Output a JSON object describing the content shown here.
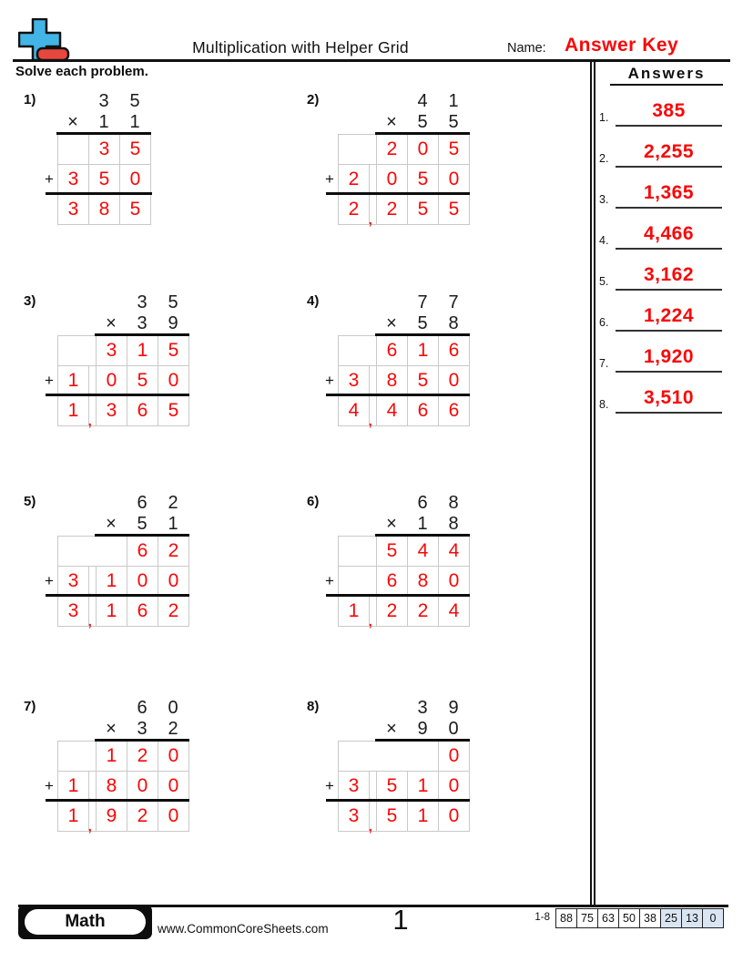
{
  "colors": {
    "accent_red": "#f80808",
    "grid_border": "#c9c9c9",
    "score_highlight": "#d9e5f3",
    "logo_blue": "#42b4e6",
    "logo_red": "#e8473d",
    "ink": "#111111"
  },
  "header": {
    "logo_icon": "plus-minus-logo-icon",
    "title": "Multiplication with Helper Grid",
    "name_label": "Name:",
    "name_value": "Answer Key",
    "instruction": "Solve each problem."
  },
  "answers_panel": {
    "title": "Answers",
    "items": [
      {
        "num": "1.",
        "value": "385"
      },
      {
        "num": "2.",
        "value": "2,255"
      },
      {
        "num": "3.",
        "value": "1,365"
      },
      {
        "num": "4.",
        "value": "4,466"
      },
      {
        "num": "5.",
        "value": "3,162"
      },
      {
        "num": "6.",
        "value": "1,224"
      },
      {
        "num": "7.",
        "value": "1,920"
      },
      {
        "num": "8.",
        "value": "3,510"
      }
    ]
  },
  "problems": [
    {
      "label": "1)",
      "top_digits": [
        "3",
        "5"
      ],
      "mult_digits": [
        "1",
        "1"
      ],
      "cols": 3,
      "rows": [
        {
          "cells": [
            {
              "v": ""
            },
            {
              "v": "3"
            },
            {
              "v": "5"
            }
          ]
        },
        {
          "plus": true,
          "cells": [
            {
              "v": "3"
            },
            {
              "v": "5"
            },
            {
              "v": "0"
            }
          ]
        },
        {
          "answer": true,
          "cells": [
            {
              "v": "3"
            },
            {
              "v": "8"
            },
            {
              "v": "5"
            }
          ]
        }
      ]
    },
    {
      "label": "2)",
      "top_digits": [
        "4",
        "1"
      ],
      "mult_digits": [
        "5",
        "5"
      ],
      "cols": 5,
      "rows": [
        {
          "cells": [
            {
              "v": "",
              "s": 2
            },
            {
              "v": "2"
            },
            {
              "v": "0"
            },
            {
              "v": "5"
            }
          ]
        },
        {
          "plus": true,
          "cells": [
            {
              "v": "2"
            },
            {
              "v": ",",
              "c": true
            },
            {
              "v": "0"
            },
            {
              "v": "5"
            },
            {
              "v": "0"
            }
          ]
        },
        {
          "answer": true,
          "cells": [
            {
              "v": "2"
            },
            {
              "v": ",",
              "c": true
            },
            {
              "v": "2"
            },
            {
              "v": "5"
            },
            {
              "v": "5"
            }
          ]
        }
      ]
    },
    {
      "label": "3)",
      "top_digits": [
        "3",
        "5"
      ],
      "mult_digits": [
        "3",
        "9"
      ],
      "cols": 5,
      "rows": [
        {
          "cells": [
            {
              "v": "",
              "s": 2
            },
            {
              "v": "3"
            },
            {
              "v": "1"
            },
            {
              "v": "5"
            }
          ]
        },
        {
          "plus": true,
          "cells": [
            {
              "v": "1"
            },
            {
              "v": ",",
              "c": true
            },
            {
              "v": "0"
            },
            {
              "v": "5"
            },
            {
              "v": "0"
            }
          ]
        },
        {
          "answer": true,
          "cells": [
            {
              "v": "1"
            },
            {
              "v": ",",
              "c": true
            },
            {
              "v": "3"
            },
            {
              "v": "6"
            },
            {
              "v": "5"
            }
          ]
        }
      ]
    },
    {
      "label": "4)",
      "top_digits": [
        "7",
        "7"
      ],
      "mult_digits": [
        "5",
        "8"
      ],
      "cols": 5,
      "rows": [
        {
          "cells": [
            {
              "v": "",
              "s": 2
            },
            {
              "v": "6"
            },
            {
              "v": "1"
            },
            {
              "v": "6"
            }
          ]
        },
        {
          "plus": true,
          "cells": [
            {
              "v": "3"
            },
            {
              "v": ",",
              "c": true
            },
            {
              "v": "8"
            },
            {
              "v": "5"
            },
            {
              "v": "0"
            }
          ]
        },
        {
          "answer": true,
          "cells": [
            {
              "v": "4"
            },
            {
              "v": ",",
              "c": true
            },
            {
              "v": "4"
            },
            {
              "v": "6"
            },
            {
              "v": "6"
            }
          ]
        }
      ]
    },
    {
      "label": "5)",
      "top_digits": [
        "6",
        "2"
      ],
      "mult_digits": [
        "5",
        "1"
      ],
      "cols": 5,
      "rows": [
        {
          "cells": [
            {
              "v": "",
              "s": 3
            },
            {
              "v": "6"
            },
            {
              "v": "2"
            }
          ]
        },
        {
          "plus": true,
          "cells": [
            {
              "v": "3"
            },
            {
              "v": ",",
              "c": true
            },
            {
              "v": "1"
            },
            {
              "v": "0"
            },
            {
              "v": "0"
            }
          ]
        },
        {
          "answer": true,
          "cells": [
            {
              "v": "3"
            },
            {
              "v": ",",
              "c": true
            },
            {
              "v": "1"
            },
            {
              "v": "6"
            },
            {
              "v": "2"
            }
          ]
        }
      ]
    },
    {
      "label": "6)",
      "top_digits": [
        "6",
        "8"
      ],
      "mult_digits": [
        "1",
        "8"
      ],
      "cols": 5,
      "rows": [
        {
          "cells": [
            {
              "v": "",
              "s": 2
            },
            {
              "v": "5"
            },
            {
              "v": "4"
            },
            {
              "v": "4"
            }
          ]
        },
        {
          "plus": true,
          "cells": [
            {
              "v": "",
              "s": 2
            },
            {
              "v": "6"
            },
            {
              "v": "8"
            },
            {
              "v": "0"
            }
          ]
        },
        {
          "answer": true,
          "cells": [
            {
              "v": "1"
            },
            {
              "v": ",",
              "c": true
            },
            {
              "v": "2"
            },
            {
              "v": "2"
            },
            {
              "v": "4"
            }
          ]
        }
      ]
    },
    {
      "label": "7)",
      "top_digits": [
        "6",
        "0"
      ],
      "mult_digits": [
        "3",
        "2"
      ],
      "cols": 5,
      "rows": [
        {
          "cells": [
            {
              "v": "",
              "s": 2
            },
            {
              "v": "1"
            },
            {
              "v": "2"
            },
            {
              "v": "0"
            }
          ]
        },
        {
          "plus": true,
          "cells": [
            {
              "v": "1"
            },
            {
              "v": ",",
              "c": true
            },
            {
              "v": "8"
            },
            {
              "v": "0"
            },
            {
              "v": "0"
            }
          ]
        },
        {
          "answer": true,
          "cells": [
            {
              "v": "1"
            },
            {
              "v": ",",
              "c": true
            },
            {
              "v": "9"
            },
            {
              "v": "2"
            },
            {
              "v": "0"
            }
          ]
        }
      ]
    },
    {
      "label": "8)",
      "top_digits": [
        "3",
        "9"
      ],
      "mult_digits": [
        "9",
        "0"
      ],
      "cols": 5,
      "rows": [
        {
          "cells": [
            {
              "v": "",
              "s": 4
            },
            {
              "v": "0"
            }
          ]
        },
        {
          "plus": true,
          "cells": [
            {
              "v": "3"
            },
            {
              "v": ",",
              "c": true
            },
            {
              "v": "5"
            },
            {
              "v": "1"
            },
            {
              "v": "0"
            }
          ]
        },
        {
          "answer": true,
          "cells": [
            {
              "v": "3"
            },
            {
              "v": ",",
              "c": true
            },
            {
              "v": "5"
            },
            {
              "v": "1"
            },
            {
              "v": "0"
            }
          ]
        }
      ]
    }
  ],
  "footer": {
    "subject": "Math",
    "website": "www.CommonCoreSheets.com",
    "page": "1",
    "range": "1-8",
    "scores": [
      {
        "v": "88",
        "hl": false
      },
      {
        "v": "75",
        "hl": false
      },
      {
        "v": "63",
        "hl": false
      },
      {
        "v": "50",
        "hl": false
      },
      {
        "v": "38",
        "hl": false
      },
      {
        "v": "25",
        "hl": true
      },
      {
        "v": "13",
        "hl": true
      },
      {
        "v": "0",
        "hl": true
      }
    ]
  }
}
